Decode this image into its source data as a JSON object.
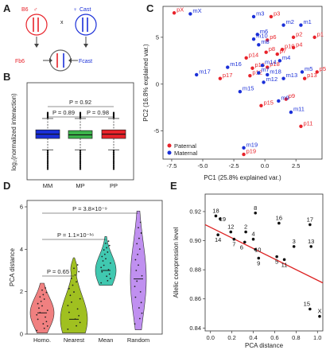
{
  "colors": {
    "red": "#e8222a",
    "blue": "#1a2fd8",
    "green": "#3cb44b",
    "lightred": "#f08080",
    "olive": "#a0c020",
    "teal": "#40c8b0",
    "purple": "#c090f0",
    "fitline": "#dd2222"
  },
  "panelA": {
    "letter": "A",
    "top_left": "B6",
    "top_left_sym": "♂",
    "cross": "x",
    "top_right_sym": "♀",
    "top_right": "Cast",
    "bottom_left": "Fb6",
    "bottom_right": "Fcast"
  },
  "panelB": {
    "letter": "B",
    "ylabel": "log₂(normalized interaction)",
    "categories": [
      "MM",
      "MP",
      "PP"
    ],
    "p_labels": [
      "P = 0.92",
      "P = 0.89",
      "P = 0.98"
    ]
  },
  "panelC": {
    "letter": "C",
    "xlabel": "PC1 (25.8% explained var.)",
    "ylabel": "PC2 (16.8% explained var.)",
    "legend": [
      "Paternal",
      "Maternal"
    ]
  },
  "panelD": {
    "letter": "D",
    "ylabel": "PCA distance",
    "categories": [
      "Homo.",
      "Nearest",
      "Mean",
      "Random"
    ],
    "p_labels": [
      "P = 3.8×10⁻⁹",
      "P = 1.1×10⁻¹⁶",
      "P = 0.65"
    ]
  },
  "panelE": {
    "letter": "E",
    "xlabel": "PCA distance",
    "ylabel": "Allelic coexpression level"
  },
  "chart_data": [
    {
      "panel": "B",
      "type": "box",
      "categories": [
        "MM",
        "MP",
        "PP"
      ],
      "ylabel": "log₂(normalized interaction)",
      "series": [
        {
          "name": "MM",
          "color": "#1a2fd8",
          "median": 0,
          "q1": -0.3,
          "q3": 0.3,
          "whisker_low": -1.1,
          "whisker_high": 1.1
        },
        {
          "name": "MP",
          "color": "#3cb44b",
          "median": -0.05,
          "q1": -0.3,
          "q3": 0.25,
          "whisker_low": -1.1,
          "whisker_high": 1.1
        },
        {
          "name": "PP",
          "color": "#e8222a",
          "median": 0,
          "q1": -0.3,
          "q3": 0.3,
          "whisker_low": -1.1,
          "whisker_high": 1.1
        }
      ],
      "annotations": [
        "P = 0.92",
        "P = 0.89",
        "P = 0.98"
      ]
    },
    {
      "panel": "C",
      "type": "scatter",
      "xlabel": "PC1 (25.8% explained var.)",
      "ylabel": "PC2 (16.8% explained var.)",
      "xlim": [
        -8.2,
        4.6
      ],
      "ylim": [
        -8,
        8.3
      ],
      "xticks": [
        -7.5,
        -5.0,
        -2.5,
        0.0,
        2.5
      ],
      "yticks": [
        -5,
        0,
        5
      ],
      "series": [
        {
          "name": "Paternal",
          "color": "#e8222a",
          "points": [
            {
              "label": "pX",
              "x": -7.3,
              "y": 7.6
            },
            {
              "label": "p3",
              "x": 0.5,
              "y": 7.2
            },
            {
              "label": "p1",
              "x": 4.0,
              "y": 5.0
            },
            {
              "label": "p2",
              "x": 2.3,
              "y": 5.0
            },
            {
              "label": "p6",
              "x": 0.2,
              "y": 4.7
            },
            {
              "label": "p4",
              "x": 2.3,
              "y": 3.9
            },
            {
              "label": "p10",
              "x": 1.4,
              "y": 3.7
            },
            {
              "label": "p8",
              "x": 0.1,
              "y": 3.4
            },
            {
              "label": "p7",
              "x": 1.0,
              "y": 3.2
            },
            {
              "label": "p14",
              "x": -1.5,
              "y": 2.8
            },
            {
              "label": "p16",
              "x": -1.0,
              "y": 1.7
            },
            {
              "label": "p18",
              "x": 0.2,
              "y": 1.8
            },
            {
              "label": "p12",
              "x": -1.2,
              "y": 0.9
            },
            {
              "label": "p17",
              "x": -3.6,
              "y": 0.6
            },
            {
              "label": "p5",
              "x": 4.2,
              "y": 1.3
            },
            {
              "label": "p13",
              "x": 3.2,
              "y": 0.6
            },
            {
              "label": "p9",
              "x": 1.7,
              "y": -1.6
            },
            {
              "label": "p15",
              "x": -0.3,
              "y": -2.3
            },
            {
              "label": "p11",
              "x": 2.9,
              "y": -4.5
            },
            {
              "label": "p19",
              "x": -1.7,
              "y": -7.5
            }
          ]
        },
        {
          "name": "Maternal",
          "color": "#1a2fd8",
          "points": [
            {
              "label": "mX",
              "x": -6.0,
              "y": 7.5
            },
            {
              "label": "m3",
              "x": -0.9,
              "y": 7.2
            },
            {
              "label": "m1",
              "x": 2.9,
              "y": 6.3
            },
            {
              "label": "m2",
              "x": 1.5,
              "y": 6.3
            },
            {
              "label": "m6",
              "x": -0.6,
              "y": 5.3
            },
            {
              "label": "m10",
              "x": -0.9,
              "y": 4.8
            },
            {
              "label": "m8",
              "x": -0.5,
              "y": 4.2
            },
            {
              "label": "m4",
              "x": 1.2,
              "y": 2.5
            },
            {
              "label": "m14",
              "x": -0.2,
              "y": 2.0
            },
            {
              "label": "m16",
              "x": -3.0,
              "y": 1.8
            },
            {
              "label": "m17",
              "x": -5.5,
              "y": 1.0
            },
            {
              "label": "m7",
              "x": -0.5,
              "y": 1.2
            },
            {
              "label": "m18",
              "x": 0.2,
              "y": 1.0
            },
            {
              "label": "m5",
              "x": 3.0,
              "y": 1.3
            },
            {
              "label": "m13",
              "x": 1.5,
              "y": 0.6
            },
            {
              "label": "m12",
              "x": -0.1,
              "y": 0.2
            },
            {
              "label": "m15",
              "x": -2.0,
              "y": -0.8
            },
            {
              "label": "m9",
              "x": 1.1,
              "y": -1.8
            },
            {
              "label": "m11",
              "x": 2.1,
              "y": -3.0
            },
            {
              "label": "m19",
              "x": -1.7,
              "y": -6.8
            }
          ]
        }
      ],
      "legend": "bottom-left"
    },
    {
      "panel": "D",
      "type": "violin",
      "categories": [
        "Homo.",
        "Nearest",
        "Mean",
        "Random"
      ],
      "ylabel": "PCA distance",
      "ylim": [
        0,
        6.3
      ],
      "yticks": [
        0,
        2,
        4,
        6
      ],
      "series": [
        {
          "name": "Homo.",
          "color": "#f08080",
          "min": 0.05,
          "max": 2.4,
          "median": 1.0
        },
        {
          "name": "Nearest",
          "color": "#a0c020",
          "min": 0.05,
          "max": 3.6,
          "median": 0.7
        },
        {
          "name": "Mean",
          "color": "#40c8b0",
          "min": 2.3,
          "max": 4.6,
          "median": 3.0
        },
        {
          "name": "Random",
          "color": "#c090f0",
          "min": 0.2,
          "max": 5.8,
          "median": 2.6
        }
      ],
      "annotations": [
        "P = 3.8×10⁻⁹",
        "P = 1.1×10⁻¹⁶",
        "P = 0.65"
      ]
    },
    {
      "panel": "E",
      "type": "scatter",
      "xlabel": "PCA distance",
      "ylabel": "Allelic coexpression level",
      "xlim": [
        -0.05,
        1.05
      ],
      "ylim": [
        0.838,
        0.932
      ],
      "xticks": [
        0.0,
        0.2,
        0.4,
        0.6,
        0.8,
        1.0
      ],
      "yticks": [
        0.84,
        0.86,
        0.88,
        0.9,
        0.92
      ],
      "points": [
        {
          "label": "18",
          "x": 0.05,
          "y": 0.917
        },
        {
          "label": "19",
          "x": 0.09,
          "y": 0.915
        },
        {
          "label": "14",
          "x": 0.07,
          "y": 0.904
        },
        {
          "label": "12",
          "x": 0.19,
          "y": 0.906
        },
        {
          "label": "7",
          "x": 0.22,
          "y": 0.901
        },
        {
          "label": "2",
          "x": 0.33,
          "y": 0.906
        },
        {
          "label": "6",
          "x": 0.32,
          "y": 0.899
        },
        {
          "label": "8",
          "x": 0.42,
          "y": 0.919
        },
        {
          "label": "4",
          "x": 0.4,
          "y": 0.901
        },
        {
          "label": "10",
          "x": 0.42,
          "y": 0.894
        },
        {
          "label": "9",
          "x": 0.45,
          "y": 0.888
        },
        {
          "label": "16",
          "x": 0.64,
          "y": 0.912
        },
        {
          "label": "5",
          "x": 0.62,
          "y": 0.889
        },
        {
          "label": "11",
          "x": 0.69,
          "y": 0.887
        },
        {
          "label": "3",
          "x": 0.78,
          "y": 0.896
        },
        {
          "label": "17",
          "x": 0.93,
          "y": 0.911
        },
        {
          "label": "13",
          "x": 0.94,
          "y": 0.896
        },
        {
          "label": "15",
          "x": 0.93,
          "y": 0.853
        },
        {
          "label": "X",
          "x": 1.02,
          "y": 0.848
        }
      ],
      "fit_line": {
        "x0": -0.05,
        "y0": 0.911,
        "x1": 1.05,
        "y1": 0.871,
        "color": "#dd2222"
      }
    }
  ]
}
